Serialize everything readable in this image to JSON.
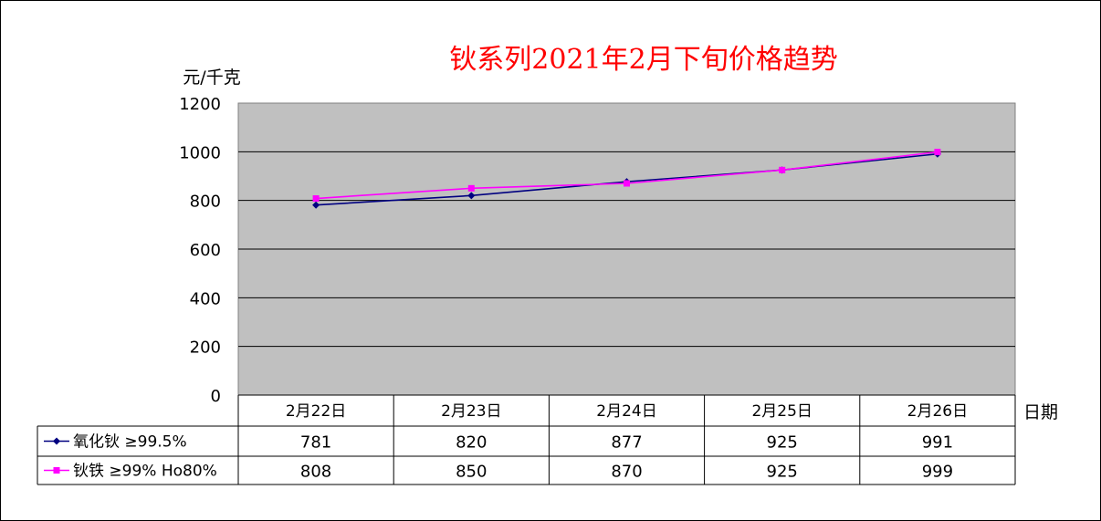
{
  "chart_data": {
    "type": "line",
    "title": "钬系列2021年2月下旬价格趋势",
    "ylabel": "元/千克",
    "xlabel": "日期",
    "categories": [
      "2月22日",
      "2月23日",
      "2月24日",
      "2月25日",
      "2月26日"
    ],
    "ylim": [
      0,
      1200
    ],
    "yticks": [
      0,
      200,
      400,
      600,
      800,
      1000,
      1200
    ],
    "grid": true,
    "series": [
      {
        "name": "氧化钬 ≥99.5%",
        "values": [
          781,
          820,
          877,
          925,
          991
        ],
        "color": "#000080",
        "marker": "diamond"
      },
      {
        "name": "钬铁 ≥99% Ho80%",
        "values": [
          808,
          850,
          870,
          925,
          999
        ],
        "color": "#FF00FF",
        "marker": "square"
      }
    ],
    "plot_background": "#C0C0C0",
    "title_color": "#FF0000"
  }
}
